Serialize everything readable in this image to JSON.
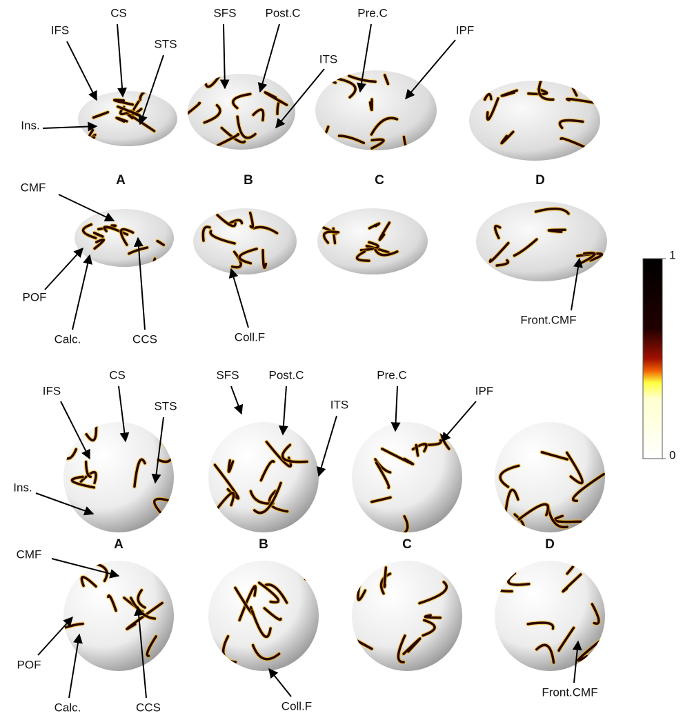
{
  "top_lateral": {
    "annotations": [
      "IFS",
      "CS",
      "STS",
      "Ins.",
      "SFS",
      "Post.C",
      "ITS",
      "Pre.C",
      "IPF"
    ]
  },
  "top_panels": [
    "A",
    "B",
    "C",
    "D"
  ],
  "top_medial": {
    "annotations": [
      "CMF",
      "POF",
      "Calc.",
      "CCS",
      "Coll.F",
      "Front.CMF"
    ]
  },
  "sphere_lateral": {
    "annotations": [
      "IFS",
      "CS",
      "STS",
      "Ins.",
      "SFS",
      "Post.C",
      "ITS",
      "Pre.C",
      "IPF"
    ]
  },
  "sphere_panels": [
    "A",
    "B",
    "C",
    "D"
  ],
  "sphere_medial": {
    "annotations": [
      "CMF",
      "POF",
      "Calc.",
      "CCS",
      "Coll.F",
      "Front.CMF"
    ]
  },
  "colorbar": {
    "ticks": [
      0,
      1
    ]
  }
}
